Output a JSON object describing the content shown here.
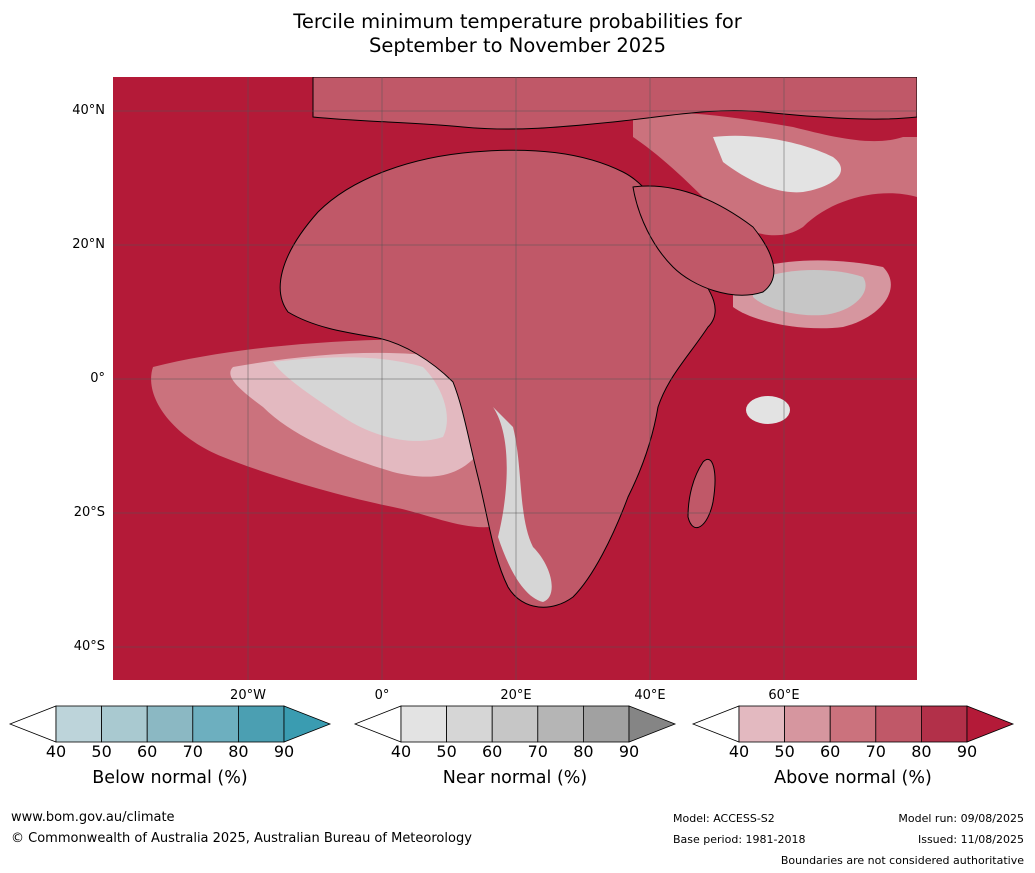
{
  "title_line1": "Tercile minimum temperature probabilities for",
  "title_line2": "September to November 2025",
  "lat_labels": [
    "40°N",
    "20°N",
    "0°",
    "20°S",
    "40°S"
  ],
  "lon_labels": [
    "20°W",
    "0°",
    "20°E",
    "40°E",
    "60°E"
  ],
  "colorbars": [
    {
      "title": "Below normal (%)",
      "ticks": [
        "40",
        "50",
        "60",
        "70",
        "80",
        "90"
      ],
      "colors": [
        "#bdd4da",
        "#a9c9d0",
        "#8bb8c3",
        "#6dafbf",
        "#4b9fb2"
      ],
      "extend_color": "#3a9cb1"
    },
    {
      "title": "Near normal (%)",
      "ticks": [
        "40",
        "50",
        "60",
        "70",
        "80",
        "90"
      ],
      "colors": [
        "#e3e3e3",
        "#d6d6d6",
        "#c6c6c6",
        "#b5b5b5",
        "#a1a1a1"
      ],
      "extend_color": "#858585"
    },
    {
      "title": "Above normal (%)",
      "ticks": [
        "40",
        "50",
        "60",
        "70",
        "80",
        "90"
      ],
      "colors": [
        "#e3b9c0",
        "#d6969f",
        "#cb727d",
        "#c05868",
        "#b23049"
      ],
      "extend_color": "#b41a38"
    }
  ],
  "footer": {
    "url": "www.bom.gov.au/climate",
    "copyright": "© Commonwealth of Australia 2025, Australian Bureau of Meteorology",
    "model": "Model: ACCESS-S2",
    "base_period": "Base period: 1981-2018",
    "model_run": "Model run: 09/08/2025",
    "issued": "Issued: 11/08/2025",
    "disclaimer": "Boundaries are not considered authoritative"
  },
  "colors": {
    "above_max": "#b41a38",
    "land_border": "#000000",
    "country_border": "#808080"
  }
}
